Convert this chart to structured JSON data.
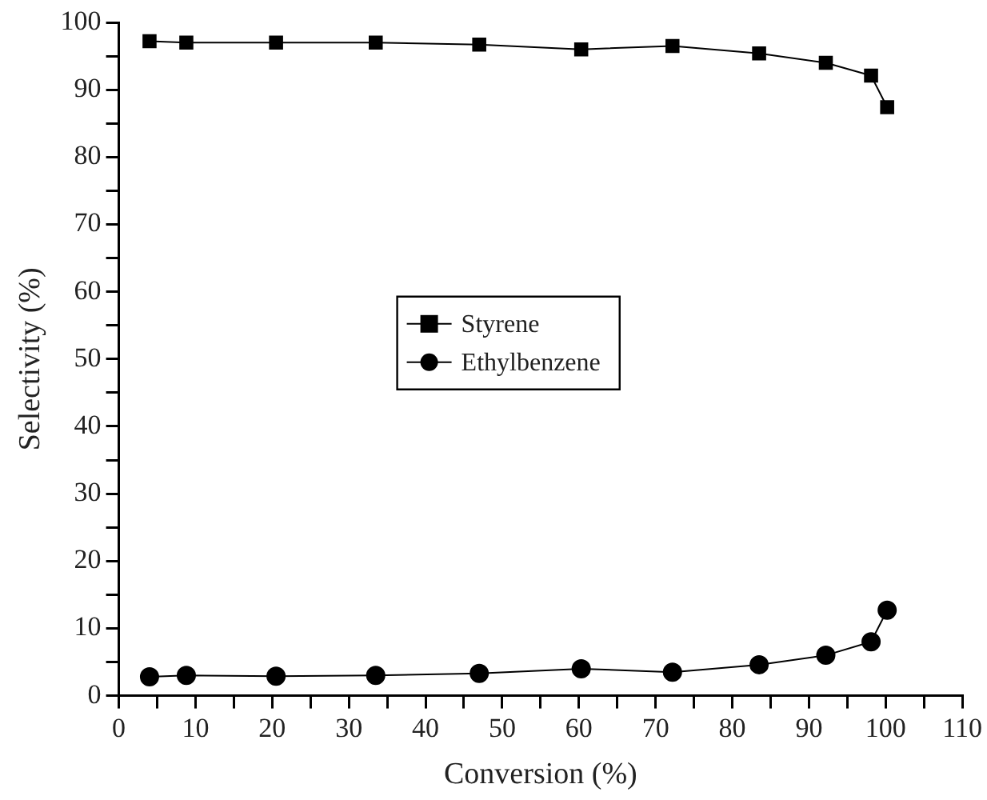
{
  "chart_data": {
    "type": "line",
    "xlabel": "Conversion (%)",
    "ylabel": "Selectivity (%)",
    "x": [
      4,
      8.8,
      20.5,
      33.5,
      47,
      60.3,
      72.2,
      83.5,
      92.2,
      98.1,
      100.2
    ],
    "series": [
      {
        "name": "Styrene",
        "color": "#000000",
        "marker": "square",
        "values": [
          97.2,
          97,
          97,
          97,
          96.7,
          96,
          96.5,
          95.4,
          94,
          92.1,
          87.4
        ]
      },
      {
        "name": "Ethylbenzene",
        "color": "#000000",
        "marker": "circle",
        "values": [
          2.8,
          3,
          2.9,
          3,
          3.3,
          4,
          3.5,
          4.6,
          6,
          8,
          12.7
        ]
      }
    ],
    "xlim": [
      0,
      110
    ],
    "xticks": [
      0,
      {
        "value": 5,
        "label": null
      },
      10,
      {
        "value": 15,
        "label": null
      },
      20,
      {
        "value": 25,
        "label": null
      },
      30,
      {
        "value": 35,
        "label": null
      },
      40,
      {
        "value": 45,
        "label": null
      },
      50,
      {
        "value": 55,
        "label": null
      },
      60,
      {
        "value": 65,
        "label": null
      },
      70,
      {
        "value": 75,
        "label": null
      },
      80,
      {
        "value": 85,
        "label": null
      },
      90,
      {
        "value": 95,
        "label": null
      },
      100,
      {
        "value": 105,
        "label": null
      },
      110
    ],
    "ylim": [
      0,
      100
    ],
    "yticks": [
      0,
      {
        "value": 5,
        "label": null
      },
      10,
      {
        "value": 15,
        "label": null
      },
      20,
      {
        "value": 25,
        "label": null
      },
      30,
      {
        "value": 35,
        "label": null
      },
      40,
      {
        "value": 45,
        "label": null
      },
      50,
      {
        "value": 55,
        "label": null
      },
      60,
      {
        "value": 65,
        "label": null
      },
      70,
      {
        "value": 75,
        "label": null
      },
      80,
      {
        "value": 85,
        "label": null
      },
      90,
      {
        "value": 95,
        "label": null
      },
      100
    ],
    "grid": false,
    "legend": "center",
    "line_style": "solid"
  }
}
